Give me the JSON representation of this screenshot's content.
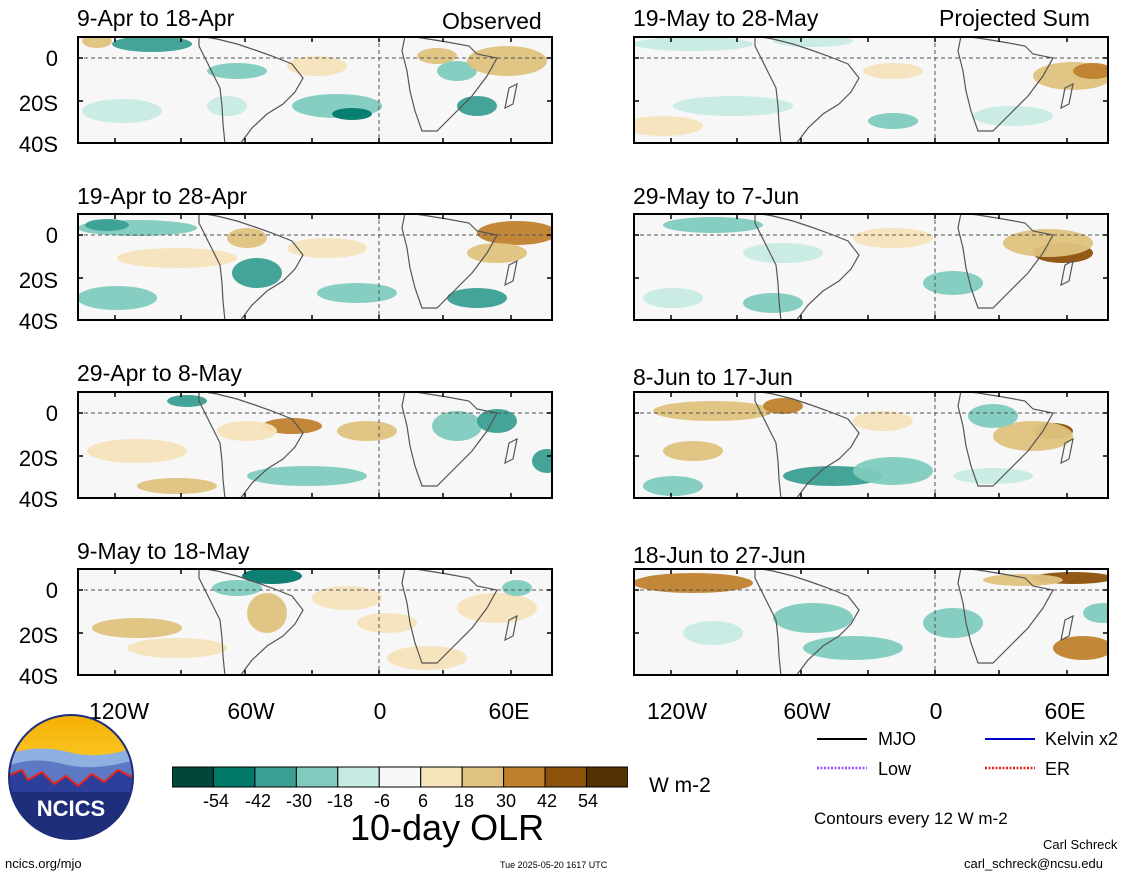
{
  "headers": {
    "left": "Observed",
    "right": "Projected Sum"
  },
  "panels_left": [
    {
      "title": "9-Apr to 18-Apr"
    },
    {
      "title": "19-Apr to 28-Apr"
    },
    {
      "title": "29-Apr to 8-May"
    },
    {
      "title": "9-May to 18-May"
    }
  ],
  "panels_right": [
    {
      "title": "19-May to 28-May"
    },
    {
      "title": "29-May to 7-Jun"
    },
    {
      "title": "8-Jun to 17-Jun"
    },
    {
      "title": "18-Jun to 27-Jun"
    }
  ],
  "y_ticks": [
    "0",
    "20S",
    "40S"
  ],
  "x_ticks": [
    "120W",
    "60W",
    "0",
    "60E"
  ],
  "colorbar": {
    "colors": [
      "#00473a",
      "#00796b",
      "#3a9f92",
      "#80cbbe",
      "#c7ebe3",
      "#f7f7f7",
      "#f5e3bc",
      "#dfc27d",
      "#bf812d",
      "#8c510a",
      "#543005"
    ],
    "labels": [
      "-54",
      "-42",
      "-30",
      "-18",
      "-6",
      "6",
      "18",
      "30",
      "42",
      "54"
    ],
    "units": "W m-2",
    "title": "10-day OLR"
  },
  "legend": {
    "items": [
      {
        "label": "MJO",
        "color": "#000000",
        "style": "solid"
      },
      {
        "label": "Kelvin x2",
        "color": "#0000cc",
        "style": "solid"
      },
      {
        "label": "Low",
        "color": "#a64dff",
        "style": "dotted"
      },
      {
        "label": "ER",
        "color": "#e8231e",
        "style": "dotted"
      }
    ],
    "contours": "Contours every 12 W m-2"
  },
  "logo": {
    "text": "NCICS"
  },
  "footer": {
    "url": "ncics.org/mjo",
    "timestamp": "Tue 2025-05-20 1617 UTC",
    "author": "Carl Schreck",
    "email": "carl_schreck@ncsu.edu"
  }
}
